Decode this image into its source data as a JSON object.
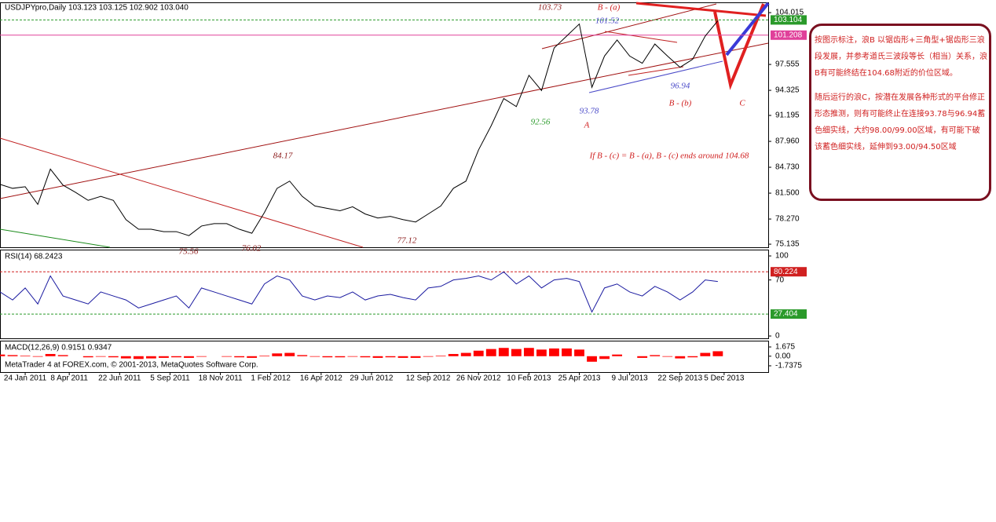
{
  "header": "USDJPYpro,Daily  103.123 103.125 102.902 103.040",
  "footer": "MetaTrader 4 at FOREX.com, © 2001-2013, MetaQuotes Software Corp.",
  "note": {
    "paragraphs": [
      "按图示标注，浪B 以锯齿形+三角型+锯齿形三浪段发展，并参考道氏三波段等长（相当）关系，浪B有可能终结在104.68附近的价位区域。",
      "随后运行的浪C，按潜在发展各种形式的平台修正形态推测，则有可能终止在连接93.78与96.94蓄色细实线，大约98.00/99.00区域，有可能下破该蓄色细实线，延伸到93.00/94.50区域"
    ]
  },
  "chart_data": [
    {
      "type": "line",
      "series": [
        {
          "color": "#000000",
          "values": [
            82.6,
            82.1,
            82.3,
            80.1,
            84.5,
            82.5,
            81.6,
            80.6,
            81.1,
            80.6,
            78.2,
            77.0,
            77.0,
            76.7,
            76.7,
            76.2,
            77.4,
            77.7,
            77.7,
            77.0,
            76.5,
            79.1,
            82.1,
            83.0,
            81.1,
            79.9,
            79.6,
            79.3,
            79.8,
            78.9,
            78.4,
            78.6,
            78.2,
            77.9,
            78.9,
            79.9,
            82.1,
            83.0,
            86.9,
            89.9,
            93.3,
            92.3,
            96.2,
            94.3,
            99.6,
            101.1,
            102.6,
            94.7,
            98.6,
            100.6,
            98.6,
            97.7,
            100.1,
            98.6,
            97.2,
            98.2,
            101.1,
            103.0
          ]
        }
      ],
      "xlim": [
        0,
        61
      ],
      "xticks": [
        {
          "value": 2,
          "label": "24 Jan 2011"
        },
        {
          "value": 5.5,
          "label": "8 Apr 2011"
        },
        {
          "value": 9.5,
          "label": "22 Jun 2011"
        },
        {
          "value": 13.5,
          "label": "5 Sep 2011"
        },
        {
          "value": 17.5,
          "label": "18 Nov 2011"
        },
        {
          "value": 21.5,
          "label": "1 Feb 2012"
        },
        {
          "value": 25.5,
          "label": "16 Apr 2012"
        },
        {
          "value": 29.5,
          "label": "29 Jun 2012"
        },
        {
          "value": 34,
          "label": "12 Sep 2012"
        },
        {
          "value": 38,
          "label": "26 Nov 2012"
        },
        {
          "value": 42,
          "label": "10 Feb 2013"
        },
        {
          "value": 46,
          "label": "25 Apr 2013"
        },
        {
          "value": 50,
          "label": "9 Jul 2013"
        },
        {
          "value": 54,
          "label": "22 Sep 2013"
        },
        {
          "value": 57.5,
          "label": "5 Dec 2013"
        }
      ],
      "ylim": [
        74.75,
        105.2
      ],
      "yticks": [
        104.015,
        97.555,
        94.325,
        91.195,
        {
          "value": 87.96,
          "label": "87.960"
        },
        {
          "value": 84.73,
          "label": "84.730"
        },
        {
          "value": 81.5,
          "label": "81.500"
        },
        {
          "value": 78.27,
          "label": "78.270"
        },
        75.135
      ],
      "hlines": [
        {
          "value": 103.104,
          "color": "#2a9a2a"
        },
        {
          "value": 101.208,
          "color": "#e0409a"
        }
      ],
      "annotations": [
        {
          "text": "103.73",
          "color": "#8b1a1a"
        },
        {
          "text": "B - (a)",
          "color": "#d02020"
        },
        {
          "text": "101.52",
          "color": "#4a4ac8"
        },
        {
          "text": "93.78",
          "color": "#4a4ac8"
        },
        {
          "text": "A",
          "color": "#d02020"
        },
        {
          "text": "92.56",
          "color": "#2a9a2a"
        },
        {
          "text": "96.94",
          "color": "#4a4ac8"
        },
        {
          "text": "B - (b)",
          "color": "#d02020"
        },
        {
          "text": "C",
          "color": "#d02020"
        },
        {
          "text": "84.17",
          "color": "#8b1a1a"
        },
        {
          "text": "If B - (c) = B - (a),   B - (c) ends around 104.68",
          "color": "#d02020"
        },
        {
          "text": "75.56",
          "color": "#8b1a1a"
        },
        {
          "text": "76.02",
          "color": "#8b1a1a"
        },
        {
          "text": "77.12",
          "color": "#8b1a1a"
        }
      ]
    },
    {
      "type": "line",
      "title": "RSI(14) 68.2423",
      "series": [
        {
          "color": "#1a1aa0",
          "values": [
            55,
            45,
            60,
            40,
            75,
            50,
            45,
            40,
            55,
            50,
            45,
            35,
            40,
            45,
            50,
            35,
            60,
            55,
            50,
            45,
            40,
            65,
            75,
            70,
            50,
            45,
            50,
            48,
            55,
            45,
            50,
            52,
            48,
            45,
            60,
            62,
            70,
            72,
            75,
            70,
            80,
            65,
            75,
            60,
            70,
            72,
            68,
            30,
            60,
            65,
            55,
            50,
            62,
            55,
            45,
            55,
            70,
            68
          ]
        }
      ],
      "ylim": [
        -2.9,
        106.9
      ],
      "yticks": [
        100,
        70,
        0
      ],
      "hlines": [
        {
          "value": 80.224,
          "color": "#d02020"
        },
        {
          "value": 27.404,
          "color": "#2a9a2a"
        }
      ]
    },
    {
      "type": "bar",
      "title": "MACD(12,26,9) 0.9151 0.9347",
      "color": "#ff0000",
      "values": [
        0.3,
        0.2,
        0.1,
        -0.1,
        0.4,
        0.2,
        0,
        -0.2,
        -0.1,
        -0.2,
        -0.4,
        -0.5,
        -0.4,
        -0.3,
        -0.2,
        -0.3,
        -0.1,
        0,
        -0.1,
        -0.2,
        -0.3,
        0.1,
        0.5,
        0.6,
        0.2,
        -0.1,
        -0.2,
        -0.2,
        -0.1,
        -0.2,
        -0.3,
        -0.2,
        -0.3,
        -0.3,
        -0.1,
        0.1,
        0.4,
        0.6,
        1.0,
        1.3,
        1.5,
        1.3,
        1.5,
        1.2,
        1.4,
        1.4,
        1.2,
        -1.0,
        -0.5,
        0.3,
        0,
        -0.3,
        0.2,
        -0.1,
        -0.4,
        -0.2,
        0.6,
        0.9
      ],
      "ylim": [
        -2.875,
        2.67
      ],
      "yticks": [
        1.675,
        {
          "value": 0,
          "label": "0.00"
        },
        -1.7375
      ]
    }
  ]
}
